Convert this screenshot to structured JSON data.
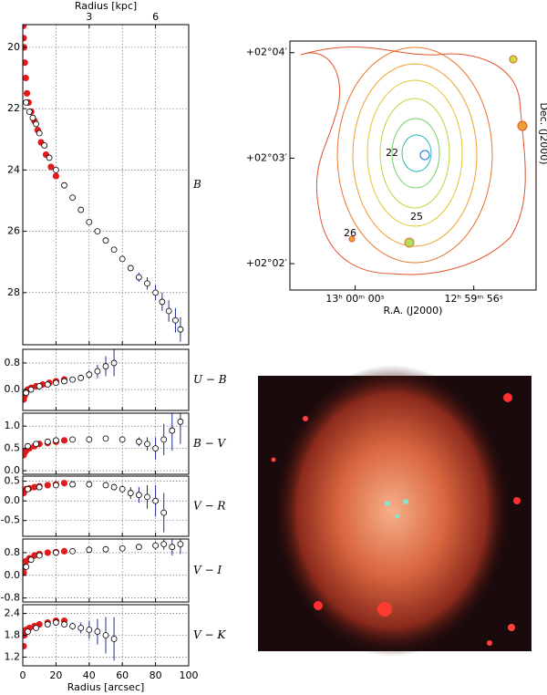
{
  "chart_data": [
    {
      "type": "scatter",
      "label": "B",
      "x2label": "Radius [kpc]",
      "x2lim": [
        0,
        7.5
      ],
      "x2ticks": [
        3,
        6
      ],
      "xlim": [
        0,
        100
      ],
      "xticks": [
        0,
        20,
        40,
        60,
        80,
        100
      ],
      "ylim": [
        19.26,
        29.7
      ],
      "invert_y": true,
      "yticks": [
        20,
        22,
        24,
        26,
        28
      ],
      "grid": true,
      "series": [
        {
          "color": "#e31a1c",
          "marker": "filled",
          "x": [
            0.3,
            0.5,
            0.8,
            1.2,
            1.8,
            2.5,
            3.5,
            5,
            7,
            9,
            11,
            14,
            17,
            20
          ],
          "values": [
            19.3,
            19.7,
            20.0,
            20.5,
            21.0,
            21.5,
            21.8,
            22.1,
            22.4,
            22.7,
            23.1,
            23.5,
            23.9,
            24.2
          ]
        },
        {
          "color": "#1f2a9c",
          "marker": "open",
          "x": [
            2,
            4,
            6,
            8,
            10,
            13,
            16,
            20,
            25,
            30,
            35,
            40,
            45,
            50,
            55,
            60,
            65,
            70,
            75,
            80,
            84,
            88,
            92,
            95
          ],
          "values": [
            21.8,
            22.1,
            22.3,
            22.5,
            22.8,
            23.2,
            23.6,
            24.0,
            24.5,
            24.9,
            25.3,
            25.7,
            26.0,
            26.3,
            26.6,
            26.9,
            27.2,
            27.5,
            27.7,
            28.0,
            28.3,
            28.6,
            28.9,
            29.2
          ],
          "errors": [
            0.02,
            0.02,
            0.02,
            0.02,
            0.02,
            0.02,
            0.02,
            0.02,
            0.03,
            0.03,
            0.03,
            0.04,
            0.04,
            0.05,
            0.05,
            0.08,
            0.1,
            0.15,
            0.2,
            0.25,
            0.3,
            0.35,
            0.4,
            0.4
          ]
        }
      ]
    },
    {
      "type": "scatter",
      "label": "U − B",
      "xlim": [
        0,
        100
      ],
      "xticks": [
        0,
        20,
        40,
        60,
        80,
        100
      ],
      "ylim": [
        -0.63,
        1.21
      ],
      "yticks": [
        {
          "value": 0,
          "label": "0.0"
        },
        0.8
      ],
      "grid": true,
      "series": [
        {
          "color": "#e31a1c",
          "marker": "filled",
          "x": [
            0.5,
            1,
            2,
            3,
            5,
            8,
            12,
            16,
            20,
            25
          ],
          "values": [
            -0.3,
            -0.2,
            -0.1,
            0,
            0.05,
            0.1,
            0.15,
            0.2,
            0.25,
            0.3
          ]
        },
        {
          "color": "#1f2a9c",
          "marker": "open",
          "x": [
            2,
            5,
            10,
            15,
            20,
            25,
            30,
            35,
            40,
            45,
            50,
            55
          ],
          "values": [
            -0.1,
            0,
            0.1,
            0.15,
            0.2,
            0.25,
            0.3,
            0.35,
            0.45,
            0.55,
            0.7,
            0.8
          ],
          "errors": [
            0.02,
            0.02,
            0.03,
            0.03,
            0.04,
            0.05,
            0.06,
            0.08,
            0.12,
            0.2,
            0.3,
            0.4
          ]
        }
      ]
    },
    {
      "type": "scatter",
      "label": "B − V",
      "xlim": [
        0,
        100
      ],
      "xticks": [
        0,
        20,
        40,
        60,
        80,
        100
      ],
      "ylim": [
        -0.08,
        1.29
      ],
      "yticks": [
        {
          "value": 0,
          "label": "0.0"
        },
        0.5,
        {
          "value": 1,
          "label": "1.0"
        }
      ],
      "grid": true,
      "series": [
        {
          "color": "#e31a1c",
          "marker": "filled",
          "x": [
            0.5,
            1,
            2,
            4,
            7,
            10,
            15,
            20,
            25
          ],
          "values": [
            0.35,
            0.4,
            0.45,
            0.5,
            0.55,
            0.6,
            0.62,
            0.65,
            0.68
          ]
        },
        {
          "color": "#1f2a9c",
          "marker": "open",
          "x": [
            3,
            8,
            15,
            20,
            30,
            40,
            50,
            60,
            70,
            75,
            80,
            85,
            90,
            95
          ],
          "values": [
            0.55,
            0.6,
            0.65,
            0.68,
            0.7,
            0.7,
            0.72,
            0.7,
            0.65,
            0.6,
            0.5,
            0.7,
            0.9,
            1.1
          ],
          "errors": [
            0.01,
            0.01,
            0.01,
            0.02,
            0.02,
            0.03,
            0.04,
            0.06,
            0.1,
            0.15,
            0.25,
            0.35,
            0.45,
            0.5
          ]
        }
      ]
    },
    {
      "type": "scatter",
      "label": "V − R",
      "xlim": [
        0,
        100
      ],
      "xticks": [
        0,
        20,
        40,
        60,
        80,
        100
      ],
      "ylim": [
        -0.9,
        0.63
      ],
      "yticks": [
        -0.5,
        {
          "value": 0,
          "label": "0.0"
        },
        0.5
      ],
      "grid": true,
      "series": [
        {
          "color": "#e31a1c",
          "marker": "filled",
          "x": [
            0.5,
            1,
            2,
            4,
            7,
            10,
            15,
            20,
            25
          ],
          "values": [
            0.2,
            0.25,
            0.3,
            0.32,
            0.35,
            0.37,
            0.4,
            0.42,
            0.45
          ]
        },
        {
          "color": "#1f2a9c",
          "marker": "open",
          "x": [
            3,
            10,
            20,
            30,
            40,
            50,
            55,
            60,
            65,
            70,
            75,
            80,
            85
          ],
          "values": [
            0.3,
            0.35,
            0.4,
            0.42,
            0.42,
            0.4,
            0.35,
            0.3,
            0.2,
            0.15,
            0.1,
            0.0,
            -0.3
          ],
          "errors": [
            0.01,
            0.01,
            0.02,
            0.03,
            0.04,
            0.06,
            0.08,
            0.1,
            0.15,
            0.2,
            0.3,
            0.4,
            0.5
          ]
        }
      ]
    },
    {
      "type": "scatter",
      "label": "V − I",
      "xlim": [
        0,
        100
      ],
      "xticks": [
        0,
        20,
        40,
        60,
        80,
        100
      ],
      "ylim": [
        -0.94,
        1.28
      ],
      "yticks": [
        -0.8,
        {
          "value": 0,
          "label": "0.0"
        },
        0.8
      ],
      "grid": true,
      "series": [
        {
          "color": "#e31a1c",
          "marker": "filled",
          "x": [
            0.5,
            1,
            2,
            4,
            7,
            10,
            15,
            20,
            25
          ],
          "values": [
            0.1,
            0.3,
            0.5,
            0.6,
            0.7,
            0.75,
            0.8,
            0.82,
            0.85
          ]
        },
        {
          "color": "#1f2a9c",
          "marker": "open",
          "x": [
            2,
            5,
            10,
            20,
            30,
            40,
            50,
            60,
            70,
            80,
            85,
            90,
            95
          ],
          "values": [
            0.3,
            0.55,
            0.7,
            0.8,
            0.85,
            0.9,
            0.92,
            0.95,
            1.0,
            1.05,
            1.1,
            1.0,
            1.1
          ],
          "errors": [
            0.02,
            0.02,
            0.02,
            0.02,
            0.03,
            0.04,
            0.05,
            0.07,
            0.1,
            0.15,
            0.2,
            0.3,
            0.35
          ]
        }
      ]
    },
    {
      "type": "scatter",
      "label": "V − K",
      "xlabel": "Radius [arcsec]",
      "xlim": [
        0,
        100
      ],
      "xticks": [
        0,
        20,
        40,
        60,
        80,
        100
      ],
      "ylim": [
        0.96,
        2.64
      ],
      "yticks": [
        1.2,
        1.8,
        2.4
      ],
      "grid": true,
      "show_xtick_labels": true,
      "series": [
        {
          "color": "#e31a1c",
          "marker": "filled",
          "x": [
            0.5,
            1,
            2,
            4,
            7,
            10,
            15,
            20,
            25
          ],
          "values": [
            1.5,
            1.8,
            1.95,
            2.0,
            2.05,
            2.1,
            2.15,
            2.2,
            2.2
          ]
        },
        {
          "color": "#1f2a9c",
          "marker": "open",
          "x": [
            3,
            8,
            15,
            20,
            25,
            30,
            35,
            40,
            45,
            50,
            55
          ],
          "values": [
            1.9,
            2.0,
            2.1,
            2.15,
            2.1,
            2.05,
            2.0,
            1.95,
            1.9,
            1.8,
            1.7
          ],
          "errors": [
            0.02,
            0.03,
            0.04,
            0.05,
            0.07,
            0.1,
            0.15,
            0.25,
            0.35,
            0.5,
            0.6
          ]
        }
      ]
    },
    {
      "type": "contour",
      "xlabel": "R.A. (J2000)",
      "ylabel": "Dec. (J2000)",
      "xlim": [
        62.2,
        53.9
      ],
      "xticks": [
        {
          "value": 60,
          "label": "13ʰ 00ᵐ 00ˢ"
        },
        {
          "value": 56,
          "label": "12ʰ 59ᵐ 56ˢ"
        }
      ],
      "ylim": [
        121.75,
        124.11
      ],
      "yticks": [
        {
          "value": 122,
          "label": "+02°02′"
        },
        {
          "value": 123,
          "label": "+02°03′"
        },
        {
          "value": 124,
          "label": "+02°04′"
        }
      ],
      "contour_labels": [
        22,
        25,
        26
      ]
    }
  ]
}
